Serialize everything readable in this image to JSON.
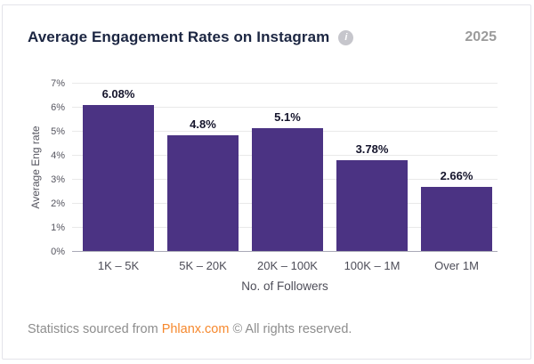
{
  "header": {
    "title": "Average Engagement Rates on Instagram",
    "year": "2025"
  },
  "chart_data": {
    "type": "bar",
    "title": "Average Engagement Rates on Instagram",
    "categories": [
      "1K – 5K",
      "5K – 20K",
      "20K – 100K",
      "100K – 1M",
      "Over 1M"
    ],
    "values": [
      6.08,
      4.8,
      5.1,
      3.78,
      2.66
    ],
    "value_labels": [
      "6.08%",
      "4.8%",
      "5.1%",
      "3.78%",
      "2.66%"
    ],
    "xlabel": "No. of Followers",
    "ylabel": "Average Eng rate",
    "ylim": [
      0,
      7
    ],
    "y_ticks": [
      "0%",
      "1%",
      "2%",
      "3%",
      "4%",
      "5%",
      "6%",
      "7%"
    ],
    "grid": true,
    "legend": "none",
    "bar_color": "#4b3383"
  },
  "footer": {
    "prefix": "Statistics sourced from ",
    "link": "Phlanx.com",
    "suffix": " © All rights reserved."
  }
}
